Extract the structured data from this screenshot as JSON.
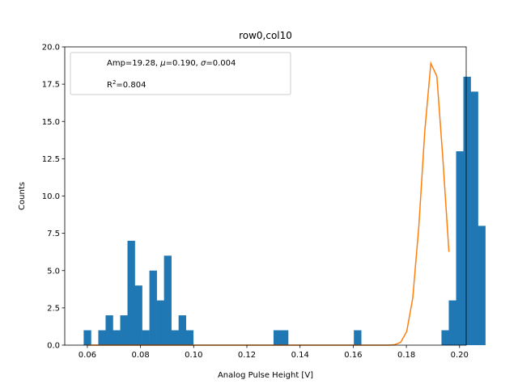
{
  "chart_data": {
    "type": "bar",
    "title": "row0,col10",
    "xlabel": "Analog Pulse Height [V]",
    "ylabel": "Counts",
    "xlim": [
      0.0515,
      0.2025
    ],
    "ylim": [
      0,
      20
    ],
    "xticks": [
      0.06,
      0.08,
      0.1,
      0.12,
      0.14,
      0.16,
      0.18,
      0.2
    ],
    "xtick_labels": [
      "0.06",
      "0.08",
      "0.10",
      "0.12",
      "0.14",
      "0.16",
      "0.18",
      "0.20"
    ],
    "yticks": [
      0,
      2.5,
      5,
      7.5,
      10,
      12.5,
      15,
      17.5,
      20
    ],
    "ytick_labels": [
      "0.0",
      "2.5",
      "5.0",
      "7.5",
      "10.0",
      "12.5",
      "15.0",
      "17.5",
      "20.0"
    ],
    "grid": false,
    "legend_placement": "top-left",
    "legend": {
      "line1_prefix": "Amp=19.28, ",
      "line1_mu": "μ",
      "line1_mid": "=0.190, ",
      "line1_sigma": "σ",
      "line1_suffix": "=0.004",
      "line2_R": "R",
      "line2_sup": "2",
      "line2_suffix": "=0.804"
    },
    "histogram": {
      "name": "Counts",
      "color": "#1f77b4",
      "bin_start": 0.05862,
      "bin_width": 0.0027466,
      "counts": [
        1,
        0,
        1,
        2,
        1,
        2,
        7,
        4,
        1,
        5,
        3,
        6,
        1,
        2,
        1,
        0,
        0,
        0,
        0,
        0,
        0,
        0,
        0,
        0,
        0,
        0,
        1,
        1,
        0,
        0,
        0,
        0,
        0,
        0,
        0,
        0,
        0,
        1,
        0,
        0,
        0,
        0,
        0,
        0,
        0,
        0,
        0,
        0,
        0,
        1,
        3,
        13,
        18,
        17,
        8
      ]
    },
    "fit": {
      "name": "Gaussian fit",
      "color": "#ff7f0e",
      "amp": 19.28,
      "mu": 0.19,
      "sigma": 0.004,
      "x_range": [
        0.06,
        0.196
      ]
    }
  }
}
